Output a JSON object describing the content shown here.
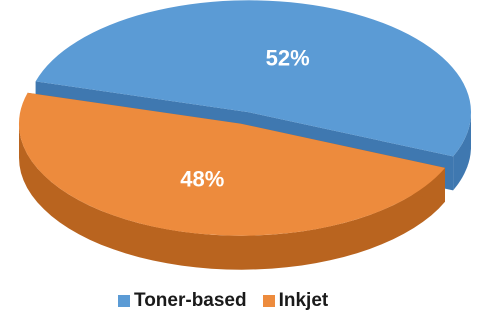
{
  "chart_data": {
    "type": "pie",
    "title": "",
    "slices": [
      {
        "label": "Toner-based",
        "value": 52,
        "display": "52%",
        "color": "#5b9bd5",
        "side": "#3f78b0"
      },
      {
        "label": "Inkjet",
        "value": 48,
        "display": "48%",
        "color": "#ed8b3d",
        "side": "#b9641f"
      }
    ],
    "legend_position": "bottom",
    "style": "3d-exploded"
  }
}
